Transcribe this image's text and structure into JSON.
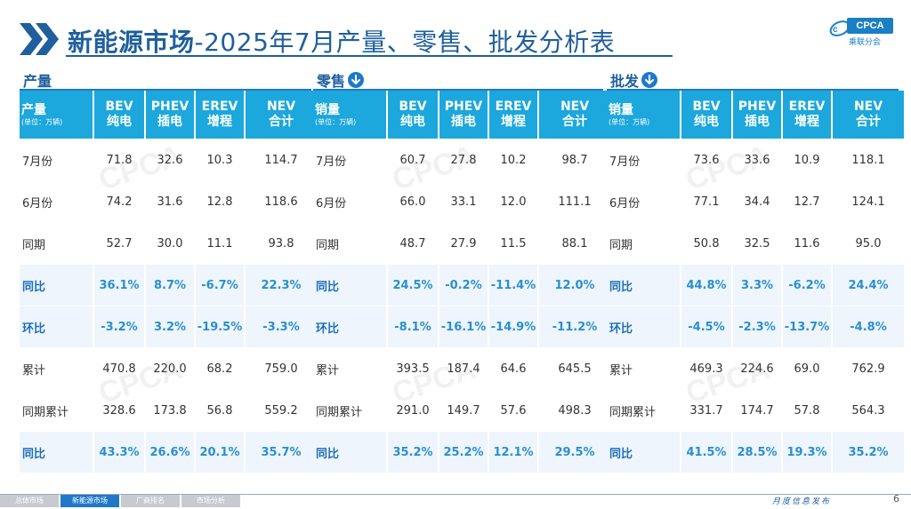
{
  "header": {
    "title_bold": "新能源市场",
    "title_rest": "-2025年7月产量、零售、批发分析表",
    "logo_text": "CPCA",
    "logo_sub": "乘联分会"
  },
  "sections": [
    {
      "label": "产量",
      "has_icon": false,
      "headers": [
        {
          "line1": "产量",
          "line2": "(单位：万辆)"
        },
        {
          "line1": "BEV",
          "line2": "纯电"
        },
        {
          "line1": "PHEV",
          "line2": "插电"
        },
        {
          "line1": "EREV",
          "line2": "增程"
        },
        {
          "line1": "NEV",
          "line2": "合计"
        }
      ],
      "rows": [
        {
          "label": "7月份",
          "values": [
            "71.8",
            "32.6",
            "10.3",
            "114.7"
          ],
          "highlight": false
        },
        {
          "label": "6月份",
          "values": [
            "74.2",
            "31.6",
            "12.8",
            "118.6"
          ],
          "highlight": false
        },
        {
          "label": "同期",
          "values": [
            "52.7",
            "30.0",
            "11.1",
            "93.8"
          ],
          "highlight": false
        },
        {
          "label": "同比",
          "values": [
            "36.1%",
            "8.7%",
            "-6.7%",
            "22.3%"
          ],
          "highlight": true
        },
        {
          "label": "环比",
          "values": [
            "-3.2%",
            "3.2%",
            "-19.5%",
            "-3.3%"
          ],
          "highlight": true
        },
        {
          "label": "累计",
          "values": [
            "470.8",
            "220.0",
            "68.2",
            "759.0"
          ],
          "highlight": false
        },
        {
          "label": "同期累计",
          "values": [
            "328.6",
            "173.8",
            "56.8",
            "559.2"
          ],
          "highlight": false
        },
        {
          "label": "同比",
          "values": [
            "43.3%",
            "26.6%",
            "20.1%",
            "35.7%"
          ],
          "highlight": true
        }
      ]
    },
    {
      "label": "零售",
      "has_icon": true,
      "headers": [
        {
          "line1": "销量",
          "line2": "(单位：万辆)"
        },
        {
          "line1": "BEV",
          "line2": "纯电"
        },
        {
          "line1": "PHEV",
          "line2": "插电"
        },
        {
          "line1": "EREV",
          "line2": "增程"
        },
        {
          "line1": "NEV",
          "line2": "合计"
        }
      ],
      "rows": [
        {
          "label": "7月份",
          "values": [
            "60.7",
            "27.8",
            "10.2",
            "98.7"
          ],
          "highlight": false
        },
        {
          "label": "6月份",
          "values": [
            "66.0",
            "33.1",
            "12.0",
            "111.1"
          ],
          "highlight": false
        },
        {
          "label": "同期",
          "values": [
            "48.7",
            "27.9",
            "11.5",
            "88.1"
          ],
          "highlight": false
        },
        {
          "label": "同比",
          "values": [
            "24.5%",
            "-0.2%",
            "-11.4%",
            "12.0%"
          ],
          "highlight": true
        },
        {
          "label": "环比",
          "values": [
            "-8.1%",
            "-16.1%",
            "-14.9%",
            "-11.2%"
          ],
          "highlight": true
        },
        {
          "label": "累计",
          "values": [
            "393.5",
            "187.4",
            "64.6",
            "645.5"
          ],
          "highlight": false
        },
        {
          "label": "同期累计",
          "values": [
            "291.0",
            "149.7",
            "57.6",
            "498.3"
          ],
          "highlight": false
        },
        {
          "label": "同比",
          "values": [
            "35.2%",
            "25.2%",
            "12.1%",
            "29.5%"
          ],
          "highlight": true
        }
      ]
    },
    {
      "label": "批发",
      "has_icon": true,
      "headers": [
        {
          "line1": "销量",
          "line2": "(单位：万辆)"
        },
        {
          "line1": "BEV",
          "line2": "纯电"
        },
        {
          "line1": "PHEV",
          "line2": "插电"
        },
        {
          "line1": "EREV",
          "line2": "增程"
        },
        {
          "line1": "NEV",
          "line2": "合计"
        }
      ],
      "rows": [
        {
          "label": "7月份",
          "values": [
            "73.6",
            "33.6",
            "10.9",
            "118.1"
          ],
          "highlight": false
        },
        {
          "label": "6月份",
          "values": [
            "77.1",
            "34.4",
            "12.7",
            "124.1"
          ],
          "highlight": false
        },
        {
          "label": "同期",
          "values": [
            "50.8",
            "32.5",
            "11.6",
            "95.0"
          ],
          "highlight": false
        },
        {
          "label": "同比",
          "values": [
            "44.8%",
            "3.3%",
            "-6.2%",
            "24.4%"
          ],
          "highlight": true
        },
        {
          "label": "环比",
          "values": [
            "-4.5%",
            "-2.3%",
            "-13.7%",
            "-4.8%"
          ],
          "highlight": true
        },
        {
          "label": "累计",
          "values": [
            "469.3",
            "224.6",
            "69.0",
            "762.9"
          ],
          "highlight": false
        },
        {
          "label": "同期累计",
          "values": [
            "331.7",
            "174.7",
            "57.8",
            "564.3"
          ],
          "highlight": false
        },
        {
          "label": "同比",
          "values": [
            "41.5%",
            "28.5%",
            "19.3%",
            "35.2%"
          ],
          "highlight": true
        }
      ]
    }
  ],
  "footer": {
    "nav": [
      {
        "label": "总体市场",
        "active": false
      },
      {
        "label": "新能源市场",
        "active": true
      },
      {
        "label": "厂商排名",
        "active": false
      },
      {
        "label": "市场分析",
        "active": false
      }
    ],
    "tagline": "月度信息发布",
    "page_number": "6"
  },
  "colors": {
    "title": "#1f5f9d",
    "header_bg": "#1ca7dd",
    "highlight_text": "#2a8fd0",
    "accent": "#1f78c8"
  }
}
